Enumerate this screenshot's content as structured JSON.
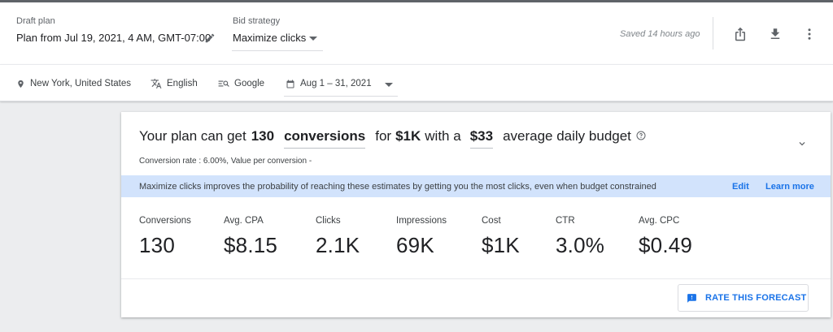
{
  "header": {
    "draft_plan_label": "Draft plan",
    "draft_plan_value": "Plan from Jul 19, 2021, 4 AM, GMT-07:00",
    "bid_strategy_label": "Bid strategy",
    "bid_strategy_value": "Maximize clicks",
    "saved_status": "Saved 14 hours ago",
    "actions": [
      {
        "icon": "share-icon"
      },
      {
        "icon": "download-icon"
      },
      {
        "icon": "more-vert-icon"
      }
    ]
  },
  "filters": {
    "location": {
      "icon": "location-pin-icon",
      "label": "New York, United States"
    },
    "language": {
      "icon": "translate-icon",
      "label": "English"
    },
    "network": {
      "icon": "search-network-icon",
      "label": "Google"
    },
    "date_range": {
      "icon": "calendar-icon",
      "label": "Aug 1 – 31, 2021"
    }
  },
  "forecast": {
    "headline": {
      "prefix": "Your plan can get",
      "count": "130",
      "metric": "conversions",
      "for_text": "for",
      "cost": "$1K",
      "with_text": "with a",
      "budget": "$33",
      "suffix": "average daily budget"
    },
    "subline": "Conversion rate : 6.00%, Value per conversion -",
    "banner": {
      "text": "Maximize clicks improves the probability of reaching these estimates by getting you the most clicks, even when budget constrained",
      "edit_label": "Edit",
      "learn_more_label": "Learn more"
    },
    "metrics": [
      {
        "label": "Conversions",
        "value": "130"
      },
      {
        "label": "Avg. CPA",
        "value": "$8.15"
      },
      {
        "label": "Clicks",
        "value": "2.1K"
      },
      {
        "label": "Impressions",
        "value": "69K"
      },
      {
        "label": "Cost",
        "value": "$1K"
      },
      {
        "label": "CTR",
        "value": "3.0%"
      },
      {
        "label": "Avg. CPC",
        "value": "$0.49"
      }
    ],
    "rate_button_label": "RATE THIS FORECAST"
  },
  "colors": {
    "accent": "#1a73e8",
    "banner_bg": "#d2e3fc",
    "page_bg": "#ecedef"
  }
}
